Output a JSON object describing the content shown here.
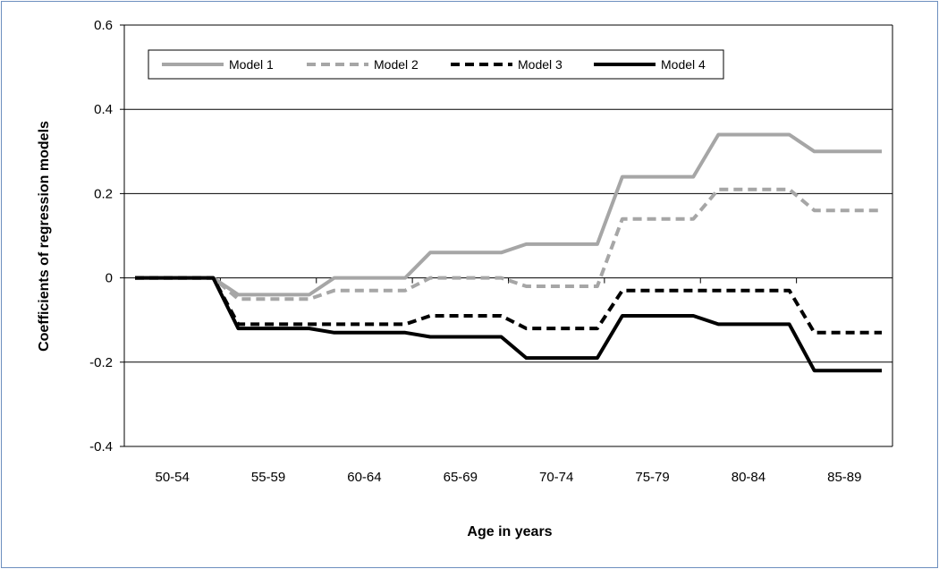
{
  "chart_data": {
    "type": "line",
    "title": "",
    "xlabel": "Age in years",
    "ylabel": "Coefficients of regression models",
    "categories": [
      "50-54",
      "55-59",
      "60-64",
      "65-69",
      "70-74",
      "75-79",
      "80-84",
      "85-89"
    ],
    "ylim": [
      -0.4,
      0.6
    ],
    "yticks": [
      "0.6",
      "0.4",
      "0.2",
      "0",
      "-0.2",
      "-0.4"
    ],
    "grid": true,
    "legend_position": "top-left inside plot",
    "series": [
      {
        "name": "Model 1",
        "values": [
          0,
          -0.04,
          0,
          0.06,
          0.08,
          0.24,
          0.34,
          0.3
        ],
        "color": "#a6a6a6",
        "dash": "solid"
      },
      {
        "name": "Model 2",
        "values": [
          0,
          -0.05,
          -0.03,
          0,
          -0.02,
          0.14,
          0.21,
          0.16
        ],
        "color": "#a6a6a6",
        "dash": "dashed"
      },
      {
        "name": "Model 3",
        "values": [
          0,
          -0.11,
          -0.11,
          -0.09,
          -0.12,
          -0.03,
          -0.03,
          -0.13
        ],
        "color": "#000000",
        "dash": "dashed"
      },
      {
        "name": "Model 4",
        "values": [
          0,
          -0.12,
          -0.13,
          -0.14,
          -0.19,
          -0.09,
          -0.11,
          -0.22
        ],
        "color": "#000000",
        "dash": "solid"
      }
    ]
  }
}
